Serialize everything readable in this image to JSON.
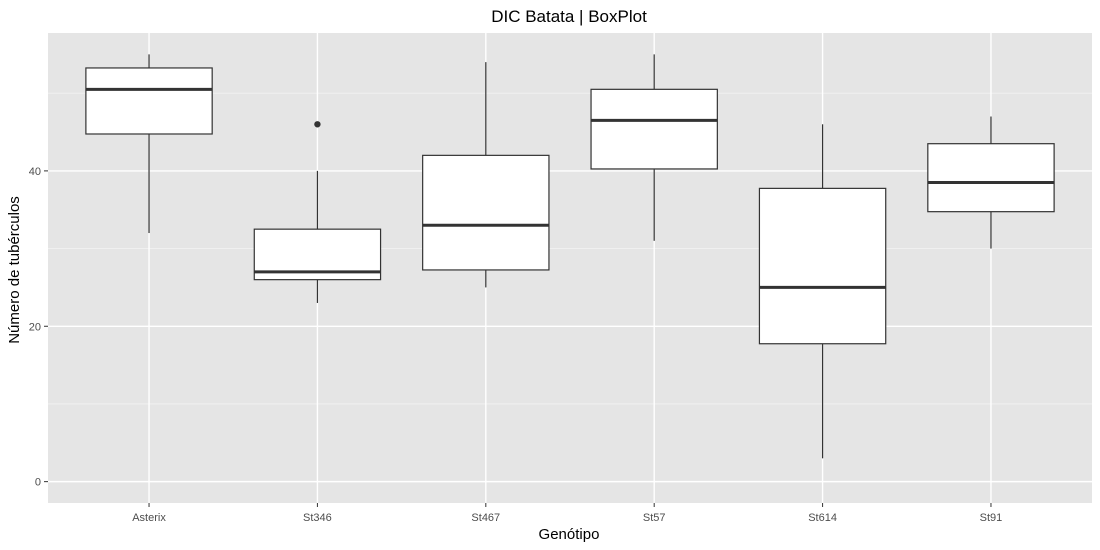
{
  "chart_data": {
    "type": "boxplot",
    "title": "DIC Batata | BoxPlot",
    "xlabel": "Genótipo",
    "ylabel": "Número de tubérculos",
    "ylim": [
      -2.75,
      57.75
    ],
    "yticks": [
      0,
      20,
      40
    ],
    "ytick_labels": [
      "0",
      "20",
      "40"
    ],
    "grid": true,
    "colors": {
      "panel_bg": "#e5e5e5",
      "grid_major": "#ffffff",
      "grid_minor": "#f2f2f2",
      "box_fill": "#ffffff",
      "box_stroke": "#333333",
      "text": "#4d4d4d"
    },
    "categories": [
      "Asterix",
      "St346",
      "St467",
      "St57",
      "St614",
      "St91"
    ],
    "boxes": [
      {
        "name": "Asterix",
        "whisker_low": 32,
        "q1": 44.75,
        "median": 50.5,
        "q3": 53.25,
        "whisker_high": 55,
        "outliers": []
      },
      {
        "name": "St346",
        "whisker_low": 23,
        "q1": 26,
        "median": 27,
        "q3": 32.5,
        "whisker_high": 40,
        "outliers": [
          46
        ]
      },
      {
        "name": "St467",
        "whisker_low": 25,
        "q1": 27.25,
        "median": 33,
        "q3": 42,
        "whisker_high": 54,
        "outliers": []
      },
      {
        "name": "St57",
        "whisker_low": 31,
        "q1": 40.25,
        "median": 46.5,
        "q3": 50.5,
        "whisker_high": 55,
        "outliers": []
      },
      {
        "name": "St614",
        "whisker_low": 3,
        "q1": 17.75,
        "median": 25,
        "q3": 37.75,
        "whisker_high": 46,
        "outliers": []
      },
      {
        "name": "St91",
        "whisker_low": 30,
        "q1": 34.75,
        "median": 38.5,
        "q3": 43.5,
        "whisker_high": 47,
        "outliers": []
      }
    ]
  }
}
